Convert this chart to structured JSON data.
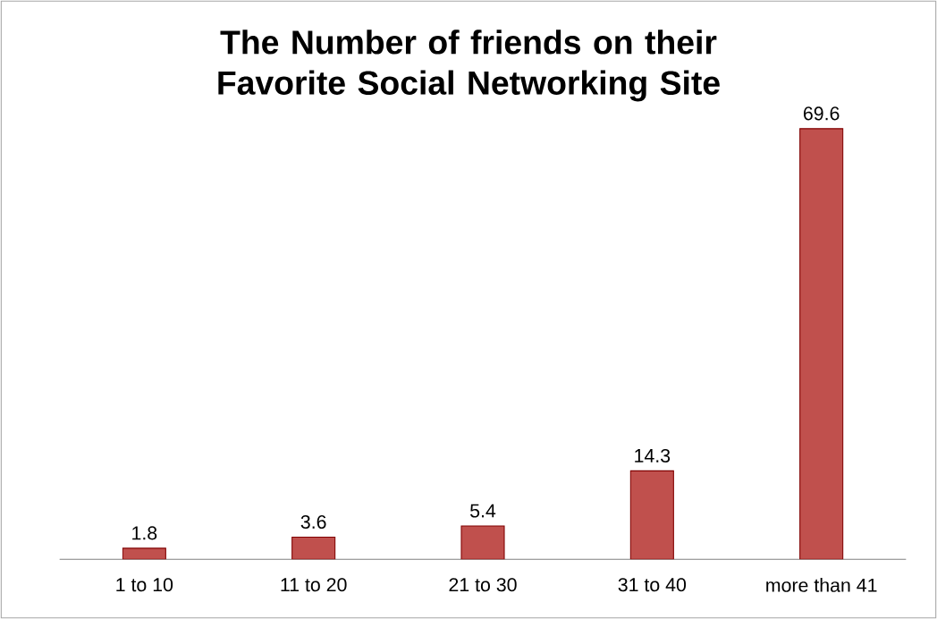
{
  "chart_data": {
    "type": "bar",
    "title": "The Number of friends on their Favorite Social Networking Site",
    "categories": [
      "1 to 10",
      "11 to 20",
      "21 to 30",
      "31 to 40",
      "more than 41"
    ],
    "values": [
      1.8,
      3.6,
      5.4,
      14.3,
      69.6
    ],
    "color": "#c0504d",
    "data_labels": true
  }
}
